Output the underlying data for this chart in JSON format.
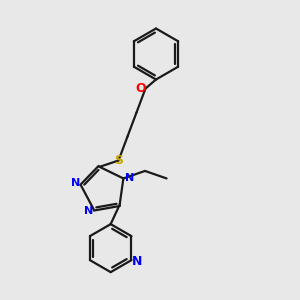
{
  "background_color": "#e8e8e8",
  "bond_color": "#1a1a1a",
  "n_color": "#0000ff",
  "o_color": "#ff0000",
  "s_color": "#ccaa00",
  "bond_width": 1.6,
  "figsize": [
    3.0,
    3.0
  ],
  "dpi": 100,
  "xlim": [
    0,
    10
  ],
  "ylim": [
    0,
    10
  ]
}
